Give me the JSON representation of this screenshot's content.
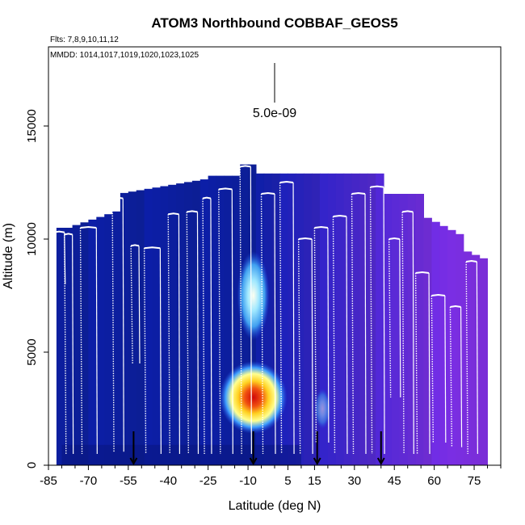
{
  "chart_data": {
    "type": "heatmap",
    "title": "ATOM3 Northbound COBBAF_GEOS5",
    "flights_label": "Flts: 7,8,9,10,11,12",
    "dates_label": "MMDD: 1014,1017,1019,1020,1023,1025",
    "xlabel": "Latitude (deg N)",
    "ylabel": "Altitude (m)",
    "xlim": [
      -85,
      85
    ],
    "ylim": [
      0,
      18500
    ],
    "x_ticks": [
      "-85",
      "-70",
      "-55",
      "-40",
      "-25",
      "-10",
      "5",
      "15",
      "30",
      "45",
      "60",
      "75"
    ],
    "x_tick_values": [
      -85,
      -70,
      -55,
      -40,
      -25,
      -10,
      5,
      15,
      30,
      45,
      60,
      75
    ],
    "y_ticks": [
      "0",
      "5000",
      "10000",
      "15000"
    ],
    "y_tick_values": [
      0,
      5000,
      10000,
      15000
    ],
    "scale_label": "5.0e-09",
    "colors": {
      "background_low": "#0a1fb0",
      "high_north": "#7a2ee0",
      "plume_peak": "#d01010",
      "flight_track": "#ffffff"
    },
    "plume": {
      "latitude": -8,
      "altitude": 3000,
      "level": "max"
    },
    "secondary_enhancement": {
      "latitude": -8,
      "altitude": 7500,
      "level": "moderate"
    },
    "profile_arrows_latitudes": [
      -53,
      -8,
      16,
      40
    ],
    "flight_segments": [
      {
        "lat_start": -83,
        "lat_end": -79,
        "alt_top": 10300,
        "alt_bottom": 8000
      },
      {
        "lat_start": -79,
        "lat_end": -76,
        "alt_top": 10200,
        "alt_bottom": 500
      },
      {
        "lat_start": -73,
        "lat_end": -67,
        "alt_top": 10500,
        "alt_bottom": 500
      },
      {
        "lat_start": -61,
        "lat_end": -57,
        "alt_top": 11800,
        "alt_bottom": 600
      },
      {
        "lat_start": -54,
        "lat_end": -51,
        "alt_top": 9700,
        "alt_bottom": 4500
      },
      {
        "lat_start": -49,
        "lat_end": -43,
        "alt_top": 9600,
        "alt_bottom": 500
      },
      {
        "lat_start": -40,
        "lat_end": -36,
        "alt_top": 11100,
        "alt_bottom": 500
      },
      {
        "lat_start": -33,
        "lat_end": -29,
        "alt_top": 11200,
        "alt_bottom": 500
      },
      {
        "lat_start": -27,
        "lat_end": -24,
        "alt_top": 11800,
        "alt_bottom": 500
      },
      {
        "lat_start": -21,
        "lat_end": -16,
        "alt_top": 12200,
        "alt_bottom": 500
      },
      {
        "lat_start": -13,
        "lat_end": -9,
        "alt_top": 13200,
        "alt_bottom": 500
      },
      {
        "lat_start": -5,
        "lat_end": 0,
        "alt_top": 12000,
        "alt_bottom": 500
      },
      {
        "lat_start": 2,
        "lat_end": 7,
        "alt_top": 12500,
        "alt_bottom": 500
      },
      {
        "lat_start": 9,
        "lat_end": 14,
        "alt_top": 10000,
        "alt_bottom": 500
      },
      {
        "lat_start": 15,
        "lat_end": 20,
        "alt_top": 10500,
        "alt_bottom": 1000
      },
      {
        "lat_start": 22,
        "lat_end": 27,
        "alt_top": 11000,
        "alt_bottom": 500
      },
      {
        "lat_start": 29,
        "lat_end": 34,
        "alt_top": 12000,
        "alt_bottom": 500
      },
      {
        "lat_start": 36,
        "lat_end": 41,
        "alt_top": 12300,
        "alt_bottom": 500
      },
      {
        "lat_start": 43,
        "lat_end": 47,
        "alt_top": 10000,
        "alt_bottom": 3000
      },
      {
        "lat_start": 48,
        "lat_end": 52,
        "alt_top": 11200,
        "alt_bottom": 500
      },
      {
        "lat_start": 53,
        "lat_end": 58,
        "alt_top": 8500,
        "alt_bottom": 500
      },
      {
        "lat_start": 59,
        "lat_end": 64,
        "alt_top": 7500,
        "alt_bottom": 1000
      },
      {
        "lat_start": 66,
        "lat_end": 70,
        "alt_top": 7000,
        "alt_bottom": 800
      },
      {
        "lat_start": 72,
        "lat_end": 76,
        "alt_top": 9000,
        "alt_bottom": 500
      }
    ]
  }
}
